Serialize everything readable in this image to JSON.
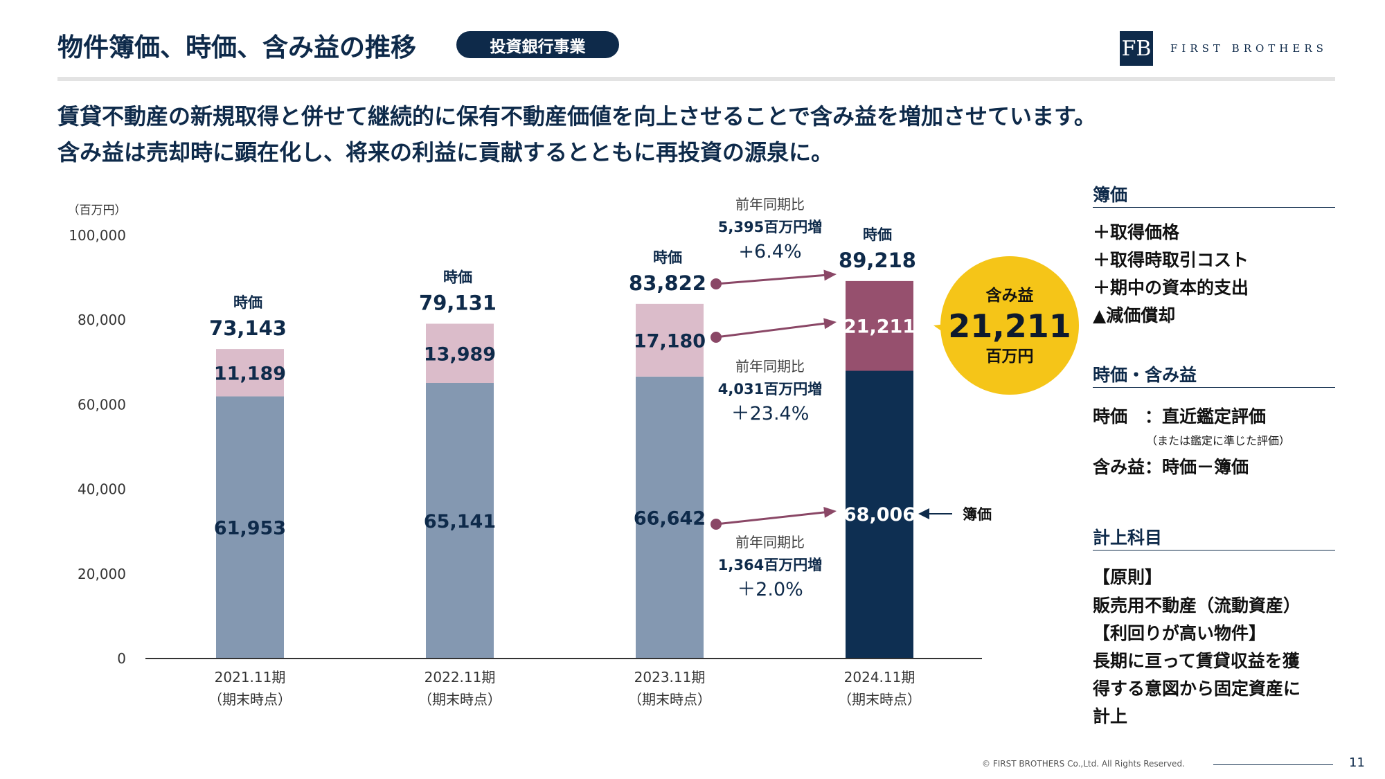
{
  "header": {
    "title": "物件簿価、時価、含み益の推移",
    "badge": "投資銀行事業",
    "logo_mark": "FB",
    "logo_text": "FIRST BROTHERS"
  },
  "lead": {
    "line1": "賃貸不動産の新規取得と併せて継続的に保有不動産価値を向上させることで含み益を増加させています。",
    "line2": "含み益は売却時に顕在化し、将来の利益に貢献するとともに再投資の源泉に。"
  },
  "chart_data": {
    "type": "bar",
    "stacked": true,
    "unit_label": "（百万円）",
    "ylim": [
      0,
      100000
    ],
    "yticks": [
      "100,000",
      "80,000",
      "60,000",
      "40,000",
      "20,000",
      "0"
    ],
    "categories": [
      "2021.11期",
      "2022.11期",
      "2023.11期",
      "2024.11期"
    ],
    "category_sub": "（期末時点）",
    "series": [
      {
        "name": "簿価",
        "values": [
          61953,
          65141,
          66642,
          68006
        ],
        "labels": [
          "61,953",
          "65,141",
          "66,642",
          "68,006"
        ]
      },
      {
        "name": "含み益",
        "values": [
          11189,
          13989,
          17180,
          21211
        ],
        "labels": [
          "11,189",
          "13,989",
          "17,180",
          "21,211"
        ]
      }
    ],
    "market_value_title": "時価",
    "market_values": [
      "73,143",
      "79,131",
      "83,822",
      "89,218"
    ],
    "annotations": [
      {
        "title": "前年同期比",
        "amount": "5,395百万円増",
        "pct": "+6.4%"
      },
      {
        "title": "前年同期比",
        "amount": "4,031百万円増",
        "pct": "＋23.4%"
      },
      {
        "title": "前年同期比",
        "amount": "1,364百万円増",
        "pct": "＋2.0%"
      }
    ],
    "book_value_pointer": "簿価",
    "bubble": {
      "title": "含み益",
      "value": "21,211",
      "unit": "百万円"
    },
    "colors": {
      "book": "#8498b1",
      "gain": "#dbbcca",
      "book_latest": "#0e2f52",
      "gain_latest": "#96506e",
      "arrow": "#8a4766",
      "bubble": "#f5c518",
      "axis": "#333333"
    }
  },
  "sidebar": {
    "book_heading": "簿価",
    "book_items": [
      "＋取得価格",
      "＋取得時取引コスト",
      "＋期中の資本的支出",
      "▲減価償却"
    ],
    "mv_heading": "時価・含み益",
    "mv_line1": "時価　：直近鑑定評価",
    "mv_note": "（または鑑定に準じた評価）",
    "mv_line2": "含み益：時価－簿価",
    "acct_heading": "計上科目",
    "acct_lines": [
      "【原則】",
      "販売用不動産（流動資産）",
      "【利回りが高い物件】",
      "長期に亘って賃貸収益を獲",
      "得する意図から固定資産に",
      "計上"
    ]
  },
  "footer": {
    "copyright": "© FIRST BROTHERS Co.,Ltd. All Rights Reserved.",
    "page": "11"
  }
}
